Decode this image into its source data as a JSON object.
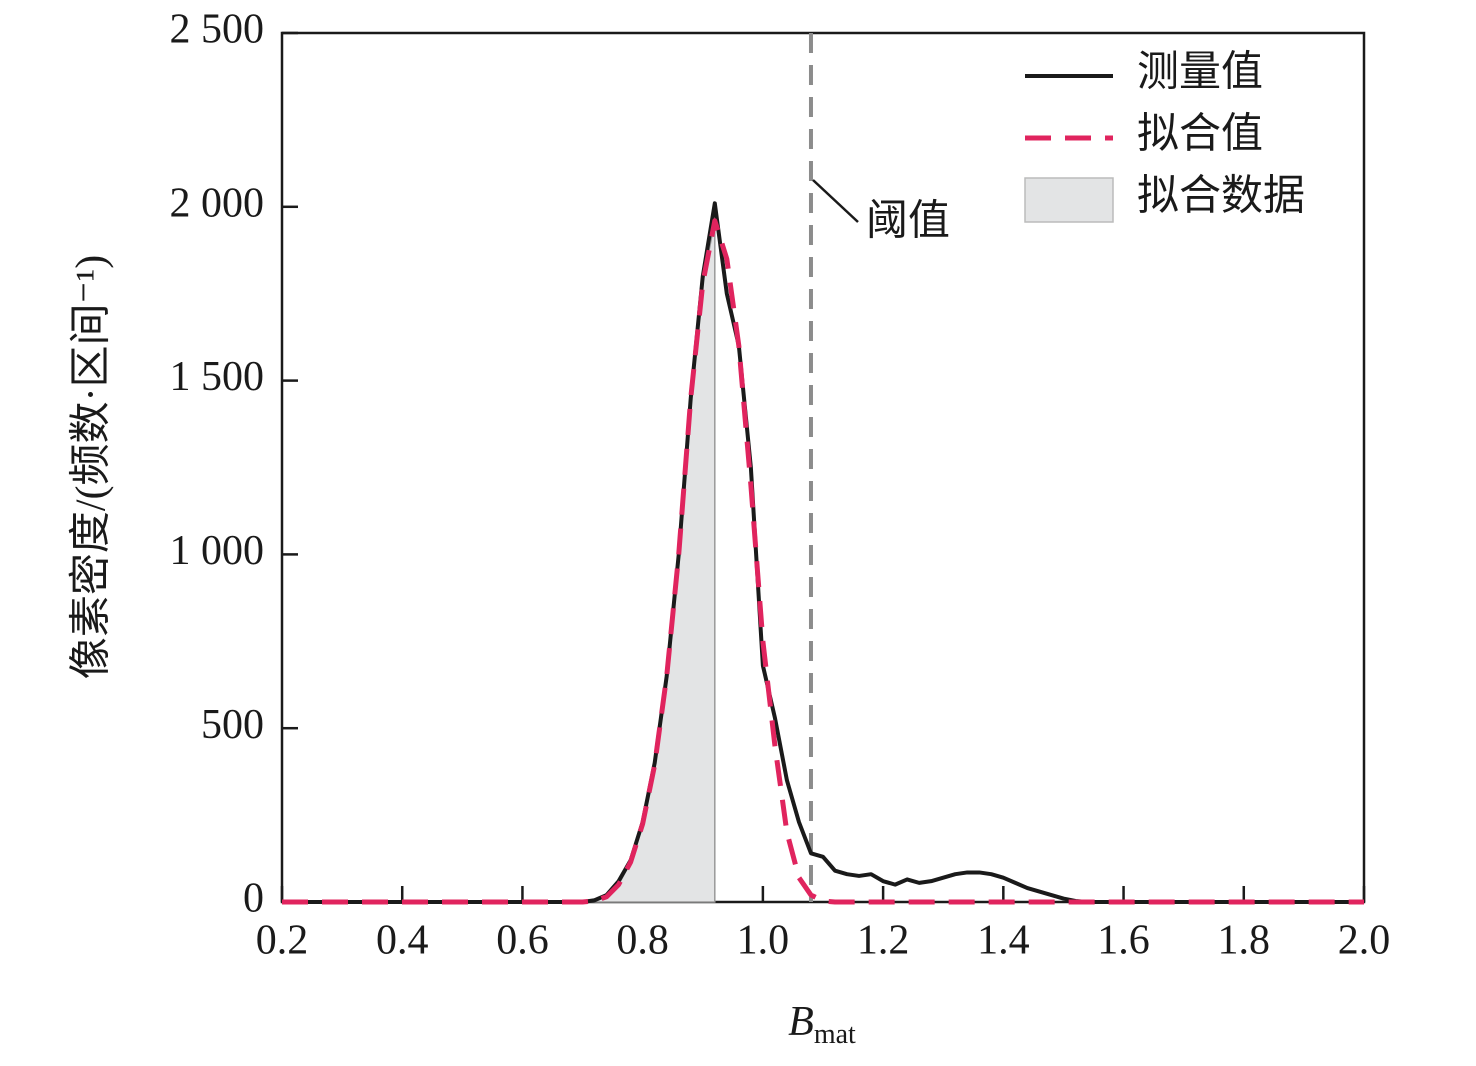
{
  "chart_data": {
    "type": "line",
    "x_label": {
      "main": "B",
      "sub": "mat"
    },
    "y_label": "像素密度/(频数·区间⁻¹)",
    "x": [
      0.2,
      0.7,
      0.72,
      0.74,
      0.76,
      0.78,
      0.8,
      0.82,
      0.84,
      0.86,
      0.88,
      0.9,
      0.92,
      0.94,
      0.96,
      0.98,
      1.0,
      1.02,
      1.04,
      1.06,
      1.08,
      1.1,
      1.12,
      1.14,
      1.16,
      1.18,
      1.2,
      1.22,
      1.24,
      1.26,
      1.28,
      1.3,
      1.32,
      1.34,
      1.36,
      1.38,
      1.4,
      1.42,
      1.44,
      1.46,
      1.48,
      1.5,
      1.52,
      1.54,
      2.0
    ],
    "series": [
      {
        "name": "测量值",
        "color": "#1a1a1a",
        "style": "solid",
        "values": [
          0,
          0,
          5,
          20,
          60,
          120,
          230,
          400,
          650,
          1000,
          1450,
          1800,
          2010,
          1750,
          1600,
          1250,
          680,
          530,
          350,
          230,
          140,
          130,
          90,
          80,
          75,
          80,
          60,
          50,
          65,
          55,
          60,
          70,
          80,
          85,
          85,
          80,
          70,
          55,
          40,
          30,
          20,
          10,
          3,
          0,
          0
        ]
      },
      {
        "name": "拟合值",
        "color": "#e0245e",
        "style": "dashed",
        "values": [
          0,
          0,
          3,
          15,
          50,
          115,
          225,
          395,
          650,
          1000,
          1450,
          1780,
          1960,
          1850,
          1600,
          1200,
          750,
          450,
          200,
          70,
          20,
          3,
          0,
          0,
          0,
          0,
          0,
          0,
          0,
          0,
          0,
          0,
          0,
          0,
          0,
          0,
          0,
          0,
          0,
          0,
          0,
          0,
          0,
          0,
          0
        ]
      },
      {
        "name": "拟合数据",
        "color": "#e3e4e5",
        "style": "area",
        "values": [
          0,
          0,
          3,
          15,
          50,
          115,
          225,
          395,
          650,
          1000,
          1450,
          1780,
          1960,
          null,
          null,
          null,
          null,
          null,
          null,
          null,
          null,
          null,
          null,
          null,
          null,
          null,
          null,
          null,
          null,
          null,
          null,
          null,
          null,
          null,
          null,
          null,
          null,
          null,
          null,
          null,
          null,
          null,
          null,
          null,
          null
        ]
      }
    ],
    "threshold": {
      "value": 1.08,
      "label": "阈值",
      "color": "#8c8c8c"
    },
    "xlim": [
      0.2,
      2.0
    ],
    "xticks": [
      0.2,
      0.4,
      0.6,
      0.8,
      {
        "value": 1.0,
        "label": "1.0"
      },
      1.2,
      1.4,
      1.6,
      1.8,
      {
        "value": 2.0,
        "label": "2.0"
      }
    ],
    "ylim": [
      0,
      2500
    ],
    "yticks": [
      0,
      500,
      {
        "value": 1000,
        "label": "1 000"
      },
      {
        "value": 1500,
        "label": "1 500"
      },
      {
        "value": 2000,
        "label": "2 000"
      },
      {
        "value": 2500,
        "label": "2 500"
      }
    ],
    "legend": "upper right"
  }
}
